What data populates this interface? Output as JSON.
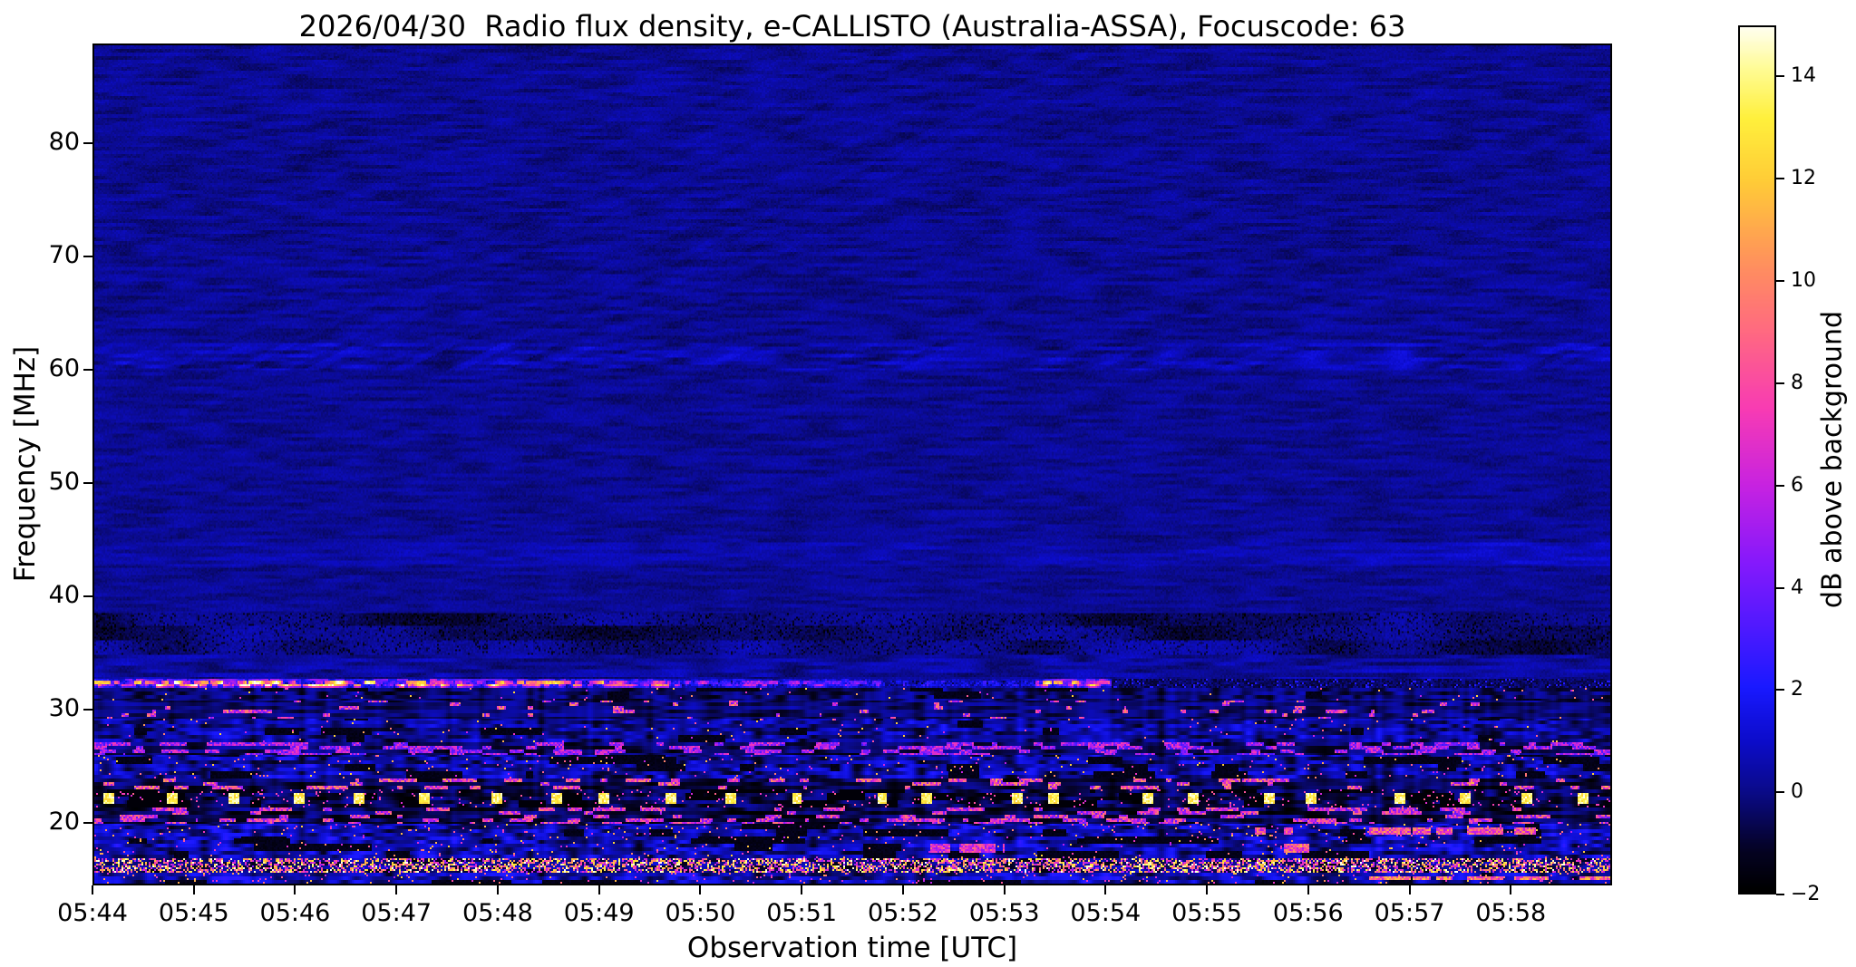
{
  "figure": {
    "background_color": "#ffffff",
    "kind": "radio spectrogram screenshot"
  },
  "chart_data": {
    "type": "heatmap",
    "subtype": "dynamic-radio-spectrum",
    "title": "2026/04/30  Radio flux density, e-CALLISTO (Australia-ASSA), Focuscode: 63",
    "xlabel": "Observation time [UTC]",
    "ylabel": "Frequency [MHz]",
    "x_tick_labels": [
      "05:44",
      "05:45",
      "05:46",
      "05:47",
      "05:48",
      "05:49",
      "05:50",
      "05:51",
      "05:52",
      "05:53",
      "05:54",
      "05:55",
      "05:56",
      "05:57",
      "05:58"
    ],
    "x_range_utc": [
      "05:44",
      "05:59"
    ],
    "x_range_minutes": [
      0,
      15
    ],
    "y_tick_values": [
      80,
      70,
      60,
      50,
      40,
      30,
      20
    ],
    "y_tick_labels": [
      "80",
      "70",
      "60",
      "50",
      "40",
      "30",
      "20"
    ],
    "y_range_mhz": [
      14.5,
      88.8
    ],
    "grid": false,
    "colorbar": {
      "label": "dB above background",
      "tick_values": [
        14,
        12,
        10,
        8,
        6,
        4,
        2,
        0,
        -2
      ],
      "tick_labels": [
        "14",
        "12",
        "10",
        "8",
        "6",
        "4",
        "2",
        "0",
        "−2"
      ],
      "range": [
        -2,
        15
      ],
      "position": "right"
    },
    "colormap_stops": [
      [
        -2.0,
        0,
        0,
        0
      ],
      [
        -1.2,
        5,
        3,
        35
      ],
      [
        0.0,
        11,
        11,
        140
      ],
      [
        1.0,
        13,
        13,
        205
      ],
      [
        2.0,
        25,
        25,
        255
      ],
      [
        3.2,
        80,
        25,
        255
      ],
      [
        4.5,
        135,
        25,
        252
      ],
      [
        6.0,
        200,
        35,
        225
      ],
      [
        7.5,
        248,
        60,
        180
      ],
      [
        9.0,
        255,
        105,
        130
      ],
      [
        10.5,
        255,
        150,
        90
      ],
      [
        12.0,
        255,
        205,
        55
      ],
      [
        13.2,
        255,
        240,
        60
      ],
      [
        14.2,
        255,
        252,
        150
      ],
      [
        15.0,
        255,
        255,
        240
      ]
    ],
    "noise_seed": 7,
    "bands": [
      {
        "f": [
          62.5,
          88.8
        ],
        "t": "smooth",
        "base": 0.1,
        "noise": 0.5,
        "diag": 0.12
      },
      {
        "f": [
          60.0,
          62.5
        ],
        "t": "smooth",
        "base": 0.4,
        "noise": 0.85,
        "diag": 0.3
      },
      {
        "f": [
          44.8,
          60.0
        ],
        "t": "smooth",
        "base": 0.1,
        "noise": 0.45,
        "diag": 0.06
      },
      {
        "f": [
          42.6,
          44.8
        ],
        "t": "smooth",
        "base": 0.4,
        "noise": 0.55,
        "rboost": 0.5
      },
      {
        "f": [
          38.4,
          42.6
        ],
        "t": "smooth",
        "base": 0.1,
        "noise": 0.45
      },
      {
        "f": [
          34.7,
          38.4
        ],
        "t": "patchy",
        "base": -0.2,
        "noise": 0.8
      },
      {
        "f": [
          32.7,
          34.7
        ],
        "t": "smooth",
        "base": 0.25,
        "noise": 0.8
      },
      {
        "f": [
          31.8,
          32.7
        ],
        "t": "line",
        "noise": 2.5,
        "segs": [
          [
            0,
            0.27,
            11
          ],
          [
            0.27,
            0.38,
            8.5
          ],
          [
            0.38,
            0.52,
            4.5
          ],
          [
            0.52,
            0.62,
            1.6
          ],
          [
            0.62,
            0.67,
            9.5
          ],
          [
            0.67,
            1,
            0.25
          ]
        ]
      },
      {
        "f": [
          30.7,
          31.8
        ],
        "t": "busy",
        "base": -0.4,
        "noise": 1.1,
        "black": 0.12
      },
      {
        "f": [
          29.1,
          30.7
        ],
        "t": "dash",
        "density": 0.13,
        "hi": 7.5,
        "lo": -0.3,
        "noise": 1.0
      },
      {
        "f": [
          27.0,
          29.1
        ],
        "t": "busy",
        "base": 0.25,
        "noise": 1.5,
        "black": 0.15
      },
      {
        "f": [
          25.9,
          27.0
        ],
        "t": "dash",
        "density": 0.42,
        "hi": 5.5,
        "lo": -0.6,
        "noise": 1.1
      },
      {
        "f": [
          23.9,
          25.9
        ],
        "t": "busy",
        "base": 0.3,
        "noise": 1.7,
        "black": 0.25,
        "spark": 0.02
      },
      {
        "f": [
          22.9,
          23.9
        ],
        "t": "dash",
        "density": 0.25,
        "hi": 8,
        "lo": -0.7,
        "noise": 1.2
      },
      {
        "f": [
          21.2,
          22.9
        ],
        "t": "blobs",
        "period": 0.042,
        "w": 0.0035,
        "hi": 13,
        "base": -0.7,
        "noise": 1.3,
        "black": 0.2
      },
      {
        "f": [
          19.8,
          21.2
        ],
        "t": "dash",
        "density": 0.3,
        "hi": 7,
        "lo": -0.8,
        "noise": 1.3
      },
      {
        "f": [
          18.5,
          19.8
        ],
        "t": "busy",
        "base": 0.5,
        "noise": 1.7,
        "black": 0.2,
        "spark": 0.03,
        "streaks": [
          [
            0.84,
            0.95,
            9.5
          ],
          [
            0.765,
            0.79,
            9
          ]
        ]
      },
      {
        "f": [
          16.7,
          18.5
        ],
        "t": "busy",
        "base": 0.55,
        "noise": 1.7,
        "black": 0.25,
        "spark": 0.02,
        "streaks": [
          [
            0.53,
            0.6,
            8
          ],
          [
            0.78,
            0.805,
            9.5
          ]
        ]
      },
      {
        "f": [
          15.5,
          16.7
        ],
        "t": "speck",
        "density": 0.5,
        "hi": 11,
        "base": -0.2,
        "noise": 1.5
      },
      {
        "f": [
          14.5,
          15.5
        ],
        "t": "busy",
        "base": 0.6,
        "noise": 1.7,
        "black": 0.2,
        "spark": 0.04,
        "streaks": [
          [
            0.84,
            1.0,
            10.5
          ]
        ]
      }
    ]
  }
}
